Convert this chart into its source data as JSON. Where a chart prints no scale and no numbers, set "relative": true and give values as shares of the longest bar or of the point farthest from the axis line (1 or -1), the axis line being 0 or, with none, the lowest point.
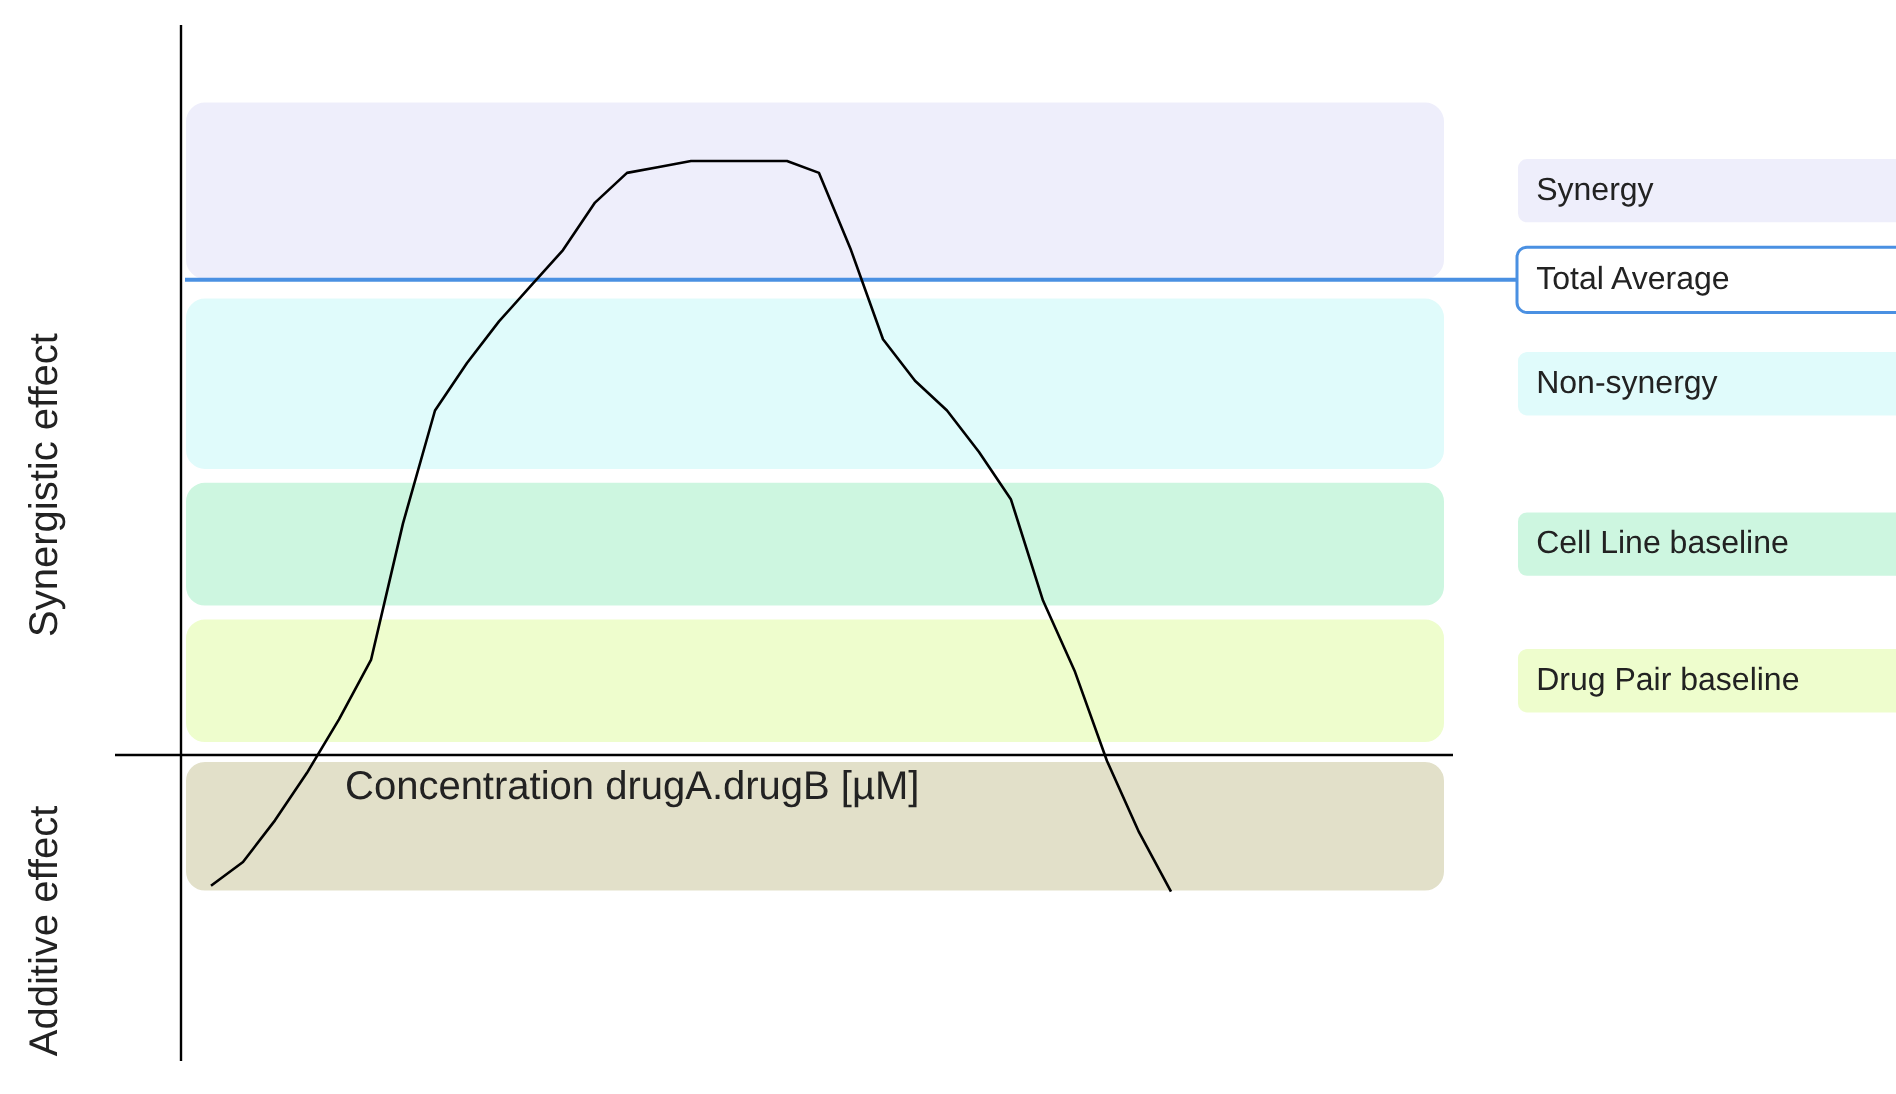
{
  "chart_data": {
    "type": "line",
    "relative": true,
    "xlabel": "Concentration drugA.drugB [µM]",
    "ylabel": "Synergistic effect",
    "annotations": [
      "Additive effect"
    ],
    "categories": [
      null,
      null,
      null,
      null,
      null,
      null,
      null,
      null,
      null,
      null,
      null,
      null,
      null,
      null,
      null,
      null,
      null,
      null,
      null,
      null,
      null,
      null,
      null,
      null,
      null,
      null,
      null,
      null,
      null,
      null,
      null,
      null,
      null,
      null,
      null,
      null,
      null,
      null,
      null
    ],
    "series": [
      {
        "color": "#000000",
        "values": [
          -0.22,
          -0.18,
          -0.11,
          -0.03,
          0.06,
          0.16,
          0.39,
          0.58,
          0.66,
          0.73,
          0.79,
          0.85,
          0.93,
          0.98,
          0.99,
          1.0,
          1.0,
          1.0,
          1.0,
          0.98,
          0.85,
          0.7,
          0.63,
          0.58,
          0.51,
          0.43,
          0.26,
          0.14,
          -0.01,
          -0.13,
          -0.23,
          null,
          null,
          null,
          null,
          null,
          null,
          null,
          null
        ]
      }
    ],
    "bands": [
      {
        "axis": "y",
        "from": 0.8,
        "to": 1.1,
        "label": "Synergy",
        "color": "#eeeefb"
      },
      {
        "axis": "y",
        "from": 0.48,
        "to": 0.77,
        "label": "Non-synergy",
        "color": "#e0fbfb"
      },
      {
        "axis": "y",
        "from": 0.25,
        "to": 0.46,
        "label": "Cell Line baseline",
        "color": "#cdf6e0"
      },
      {
        "axis": "y",
        "from": 0.02,
        "to": 0.23,
        "label": "Drug Pair baseline",
        "color": "#eefdcd"
      },
      {
        "axis": "y",
        "from": -0.23,
        "to": -0.01,
        "label": null,
        "color": "#e2e0c9"
      }
    ],
    "ref_lines": [
      {
        "axis": "y",
        "value": 0.8,
        "label": "Total Average",
        "color": "#4a90e2"
      }
    ]
  }
}
